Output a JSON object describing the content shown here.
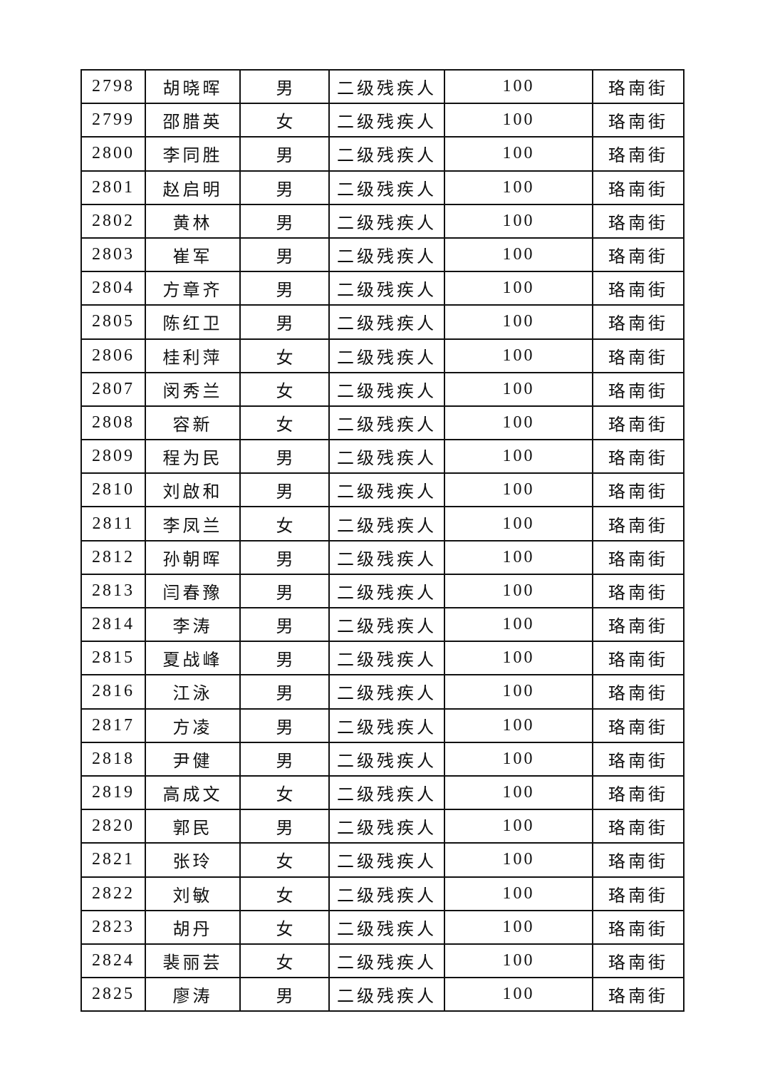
{
  "table": {
    "rows": [
      [
        "2798",
        "胡晓晖",
        "男",
        "二级残疾人",
        "100",
        "珞南街"
      ],
      [
        "2799",
        "邵腊英",
        "女",
        "二级残疾人",
        "100",
        "珞南街"
      ],
      [
        "2800",
        "李同胜",
        "男",
        "二级残疾人",
        "100",
        "珞南街"
      ],
      [
        "2801",
        "赵启明",
        "男",
        "二级残疾人",
        "100",
        "珞南街"
      ],
      [
        "2802",
        "黄林",
        "男",
        "二级残疾人",
        "100",
        "珞南街"
      ],
      [
        "2803",
        "崔军",
        "男",
        "二级残疾人",
        "100",
        "珞南街"
      ],
      [
        "2804",
        "方章齐",
        "男",
        "二级残疾人",
        "100",
        "珞南街"
      ],
      [
        "2805",
        "陈红卫",
        "男",
        "二级残疾人",
        "100",
        "珞南街"
      ],
      [
        "2806",
        "桂利萍",
        "女",
        "二级残疾人",
        "100",
        "珞南街"
      ],
      [
        "2807",
        "闵秀兰",
        "女",
        "二级残疾人",
        "100",
        "珞南街"
      ],
      [
        "2808",
        "容新",
        "女",
        "二级残疾人",
        "100",
        "珞南街"
      ],
      [
        "2809",
        "程为民",
        "男",
        "二级残疾人",
        "100",
        "珞南街"
      ],
      [
        "2810",
        "刘啟和",
        "男",
        "二级残疾人",
        "100",
        "珞南街"
      ],
      [
        "2811",
        "李凤兰",
        "女",
        "二级残疾人",
        "100",
        "珞南街"
      ],
      [
        "2812",
        "孙朝晖",
        "男",
        "二级残疾人",
        "100",
        "珞南街"
      ],
      [
        "2813",
        "闫春豫",
        "男",
        "二级残疾人",
        "100",
        "珞南街"
      ],
      [
        "2814",
        "李涛",
        "男",
        "二级残疾人",
        "100",
        "珞南街"
      ],
      [
        "2815",
        "夏战峰",
        "男",
        "二级残疾人",
        "100",
        "珞南街"
      ],
      [
        "2816",
        "江泳",
        "男",
        "二级残疾人",
        "100",
        "珞南街"
      ],
      [
        "2817",
        "方凌",
        "男",
        "二级残疾人",
        "100",
        "珞南街"
      ],
      [
        "2818",
        "尹健",
        "男",
        "二级残疾人",
        "100",
        "珞南街"
      ],
      [
        "2819",
        "高成文",
        "女",
        "二级残疾人",
        "100",
        "珞南街"
      ],
      [
        "2820",
        "郭民",
        "男",
        "二级残疾人",
        "100",
        "珞南街"
      ],
      [
        "2821",
        "张玲",
        "女",
        "二级残疾人",
        "100",
        "珞南街"
      ],
      [
        "2822",
        "刘敏",
        "女",
        "二级残疾人",
        "100",
        "珞南街"
      ],
      [
        "2823",
        "胡丹",
        "女",
        "二级残疾人",
        "100",
        "珞南街"
      ],
      [
        "2824",
        "裴丽芸",
        "女",
        "二级残疾人",
        "100",
        "珞南街"
      ],
      [
        "2825",
        "廖涛",
        "男",
        "二级残疾人",
        "100",
        "珞南街"
      ]
    ]
  }
}
